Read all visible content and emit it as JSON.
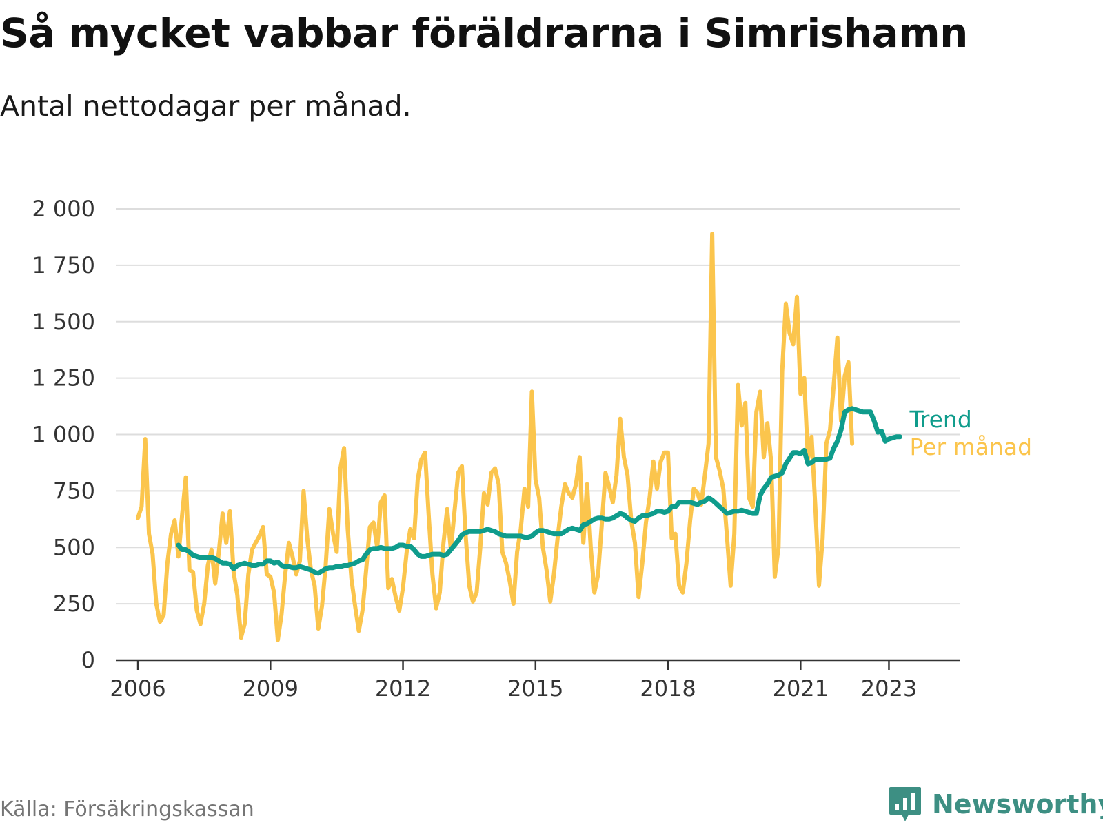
{
  "header": {
    "title": "Så mycket vabbar föräldrarna i Simrishamn",
    "subtitle": "Antal nettodagar per månad."
  },
  "footer": {
    "source": "Källa: Försäkringskassan",
    "brand": "Newsworthy",
    "brand_icon": "bar-chart-speech-bubble-icon"
  },
  "colors": {
    "per_manad": "#fbc54d",
    "trend": "#0f9c8c",
    "grid": "#dddddd",
    "axis": "#333333",
    "brand": "#3d8f83"
  },
  "chart_data": {
    "type": "line",
    "title": "Så mycket vabbar föräldrarna i Simrishamn",
    "subtitle": "Antal nettodagar per månad.",
    "xlabel": "",
    "ylabel": "",
    "xlim": [
      2005.5,
      2024.6
    ],
    "ylim": [
      0,
      2000
    ],
    "x_ticks": [
      {
        "value": 2006,
        "label": "2006"
      },
      {
        "value": 2009,
        "label": "2009"
      },
      {
        "value": 2012,
        "label": "2012"
      },
      {
        "value": 2015,
        "label": "2015"
      },
      {
        "value": 2018,
        "label": "2018"
      },
      {
        "value": 2021,
        "label": "2021"
      },
      {
        "value": 2023,
        "label": "2023"
      }
    ],
    "y_ticks": [
      {
        "value": 0,
        "label": "0"
      },
      {
        "value": 250,
        "label": "250"
      },
      {
        "value": 500,
        "label": "500"
      },
      {
        "value": 750,
        "label": "750"
      },
      {
        "value": 1000,
        "label": "1 000"
      },
      {
        "value": 1250,
        "label": "1 250"
      },
      {
        "value": 1500,
        "label": "1 500"
      },
      {
        "value": 1750,
        "label": "1 750"
      },
      {
        "value": 2000,
        "label": "2 000"
      }
    ],
    "grid": true,
    "legend": "direct labels at line ends (right)",
    "series": [
      {
        "name": "Per månad",
        "color": "#fbc54d",
        "start": [
          2006,
          1
        ],
        "values": [
          630,
          680,
          980,
          560,
          470,
          250,
          170,
          200,
          430,
          560,
          620,
          460,
          640,
          810,
          400,
          390,
          220,
          160,
          250,
          420,
          490,
          340,
          480,
          650,
          520,
          660,
          390,
          290,
          100,
          160,
          380,
          490,
          520,
          550,
          590,
          380,
          370,
          300,
          90,
          200,
          380,
          520,
          460,
          380,
          440,
          750,
          540,
          400,
          330,
          140,
          240,
          420,
          670,
          560,
          480,
          850,
          940,
          580,
          360,
          240,
          130,
          220,
          400,
          590,
          610,
          500,
          700,
          730,
          320,
          360,
          280,
          220,
          320,
          480,
          580,
          540,
          800,
          890,
          920,
          640,
          380,
          230,
          300,
          520,
          670,
          490,
          660,
          830,
          860,
          560,
          330,
          260,
          300,
          500,
          740,
          690,
          830,
          850,
          780,
          480,
          430,
          350,
          250,
          480,
          580,
          760,
          680,
          1190,
          800,
          720,
          500,
          400,
          260,
          380,
          540,
          680,
          780,
          740,
          720,
          780,
          900,
          520,
          780,
          500,
          300,
          380,
          600,
          830,
          770,
          700,
          820,
          1070,
          900,
          820,
          620,
          520,
          280,
          430,
          610,
          720,
          880,
          760,
          880,
          920,
          920,
          540,
          560,
          330,
          300,
          430,
          620,
          760,
          740,
          690,
          820,
          960,
          1890,
          900,
          840,
          760,
          550,
          330,
          560,
          1220,
          1040,
          1140,
          720,
          680,
          1100,
          1190,
          900,
          1050,
          880,
          370,
          500,
          1280,
          1580,
          1450,
          1400,
          1610,
          1180,
          1250,
          890,
          990,
          680,
          330,
          540,
          960,
          1020,
          1220,
          1430,
          1060,
          1260,
          1320,
          960
        ]
      },
      {
        "name": "Trend",
        "color": "#0f9c8c",
        "start": [
          2006,
          12
        ],
        "values": [
          510,
          490,
          490,
          480,
          465,
          460,
          455,
          455,
          455,
          455,
          450,
          440,
          430,
          430,
          425,
          405,
          420,
          425,
          430,
          425,
          420,
          420,
          425,
          425,
          440,
          440,
          430,
          435,
          420,
          415,
          415,
          410,
          410,
          415,
          410,
          405,
          400,
          390,
          385,
          395,
          405,
          410,
          410,
          415,
          415,
          420,
          420,
          425,
          430,
          440,
          445,
          470,
          490,
          495,
          495,
          500,
          495,
          495,
          495,
          500,
          510,
          510,
          505,
          505,
          490,
          470,
          460,
          460,
          465,
          470,
          470,
          470,
          465,
          470,
          490,
          510,
          530,
          555,
          565,
          570,
          570,
          570,
          570,
          575,
          580,
          575,
          570,
          560,
          555,
          550,
          550,
          550,
          550,
          550,
          545,
          545,
          550,
          565,
          575,
          575,
          570,
          565,
          560,
          560,
          560,
          570,
          580,
          585,
          580,
          575,
          600,
          605,
          615,
          625,
          630,
          630,
          625,
          625,
          630,
          640,
          650,
          645,
          630,
          620,
          615,
          630,
          640,
          640,
          645,
          650,
          660,
          660,
          655,
          660,
          680,
          680,
          700,
          700,
          700,
          700,
          695,
          690,
          700,
          705,
          720,
          710,
          695,
          680,
          665,
          650,
          655,
          660,
          660,
          665,
          660,
          655,
          650,
          650,
          730,
          760,
          780,
          810,
          815,
          820,
          830,
          870,
          895,
          920,
          920,
          915,
          930,
          870,
          875,
          890,
          890,
          890,
          890,
          895,
          940,
          970,
          1020,
          1100,
          1110,
          1115,
          1110,
          1105,
          1100,
          1100,
          1100,
          1060,
          1010,
          1015,
          970,
          980,
          985,
          990,
          990
        ]
      }
    ]
  }
}
